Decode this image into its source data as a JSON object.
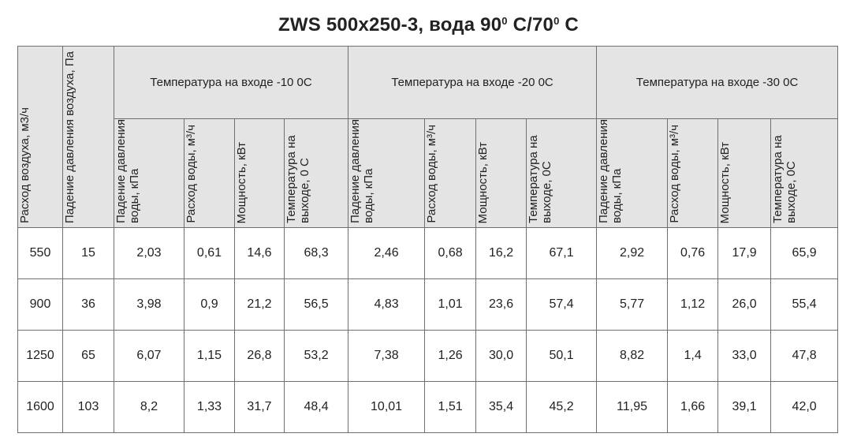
{
  "title": {
    "model": "ZWS 500x250-3, вода 90",
    "deg1": "0",
    "mid": " C/70",
    "deg2": "0",
    "end": " C"
  },
  "columns": {
    "airflow": "Расход воздуха, м3/ч",
    "air_pressure_drop": "Падение давления воздуха, Па",
    "water_pressure_drop": "Падение давления воды, кПа",
    "water_flow": "Расход воды, м³/ч",
    "power": "Мощность, кВт",
    "outlet_temp_first": "Температура на выходе, 0 С",
    "outlet_temp": "Температура на выходе, 0С"
  },
  "groups": [
    {
      "label": "Температура на входе -10 0С"
    },
    {
      "label": "Температура на входе -20 0С"
    },
    {
      "label": "Температура на входе -30 0С"
    }
  ],
  "rows": [
    {
      "airflow": "550",
      "pressure": "15",
      "g1": [
        "2,03",
        "0,61",
        "14,6",
        "68,3"
      ],
      "g2": [
        "2,46",
        "0,68",
        "16,2",
        "67,1"
      ],
      "g3": [
        "2,92",
        "0,76",
        "17,9",
        "65,9"
      ]
    },
    {
      "airflow": "900",
      "pressure": "36",
      "g1": [
        "3,98",
        "0,9",
        "21,2",
        "56,5"
      ],
      "g2": [
        "4,83",
        "1,01",
        "23,6",
        "57,4"
      ],
      "g3": [
        "5,77",
        "1,12",
        "26,0",
        "55,4"
      ]
    },
    {
      "airflow": "1250",
      "pressure": "65",
      "g1": [
        "6,07",
        "1,15",
        "26,8",
        "53,2"
      ],
      "g2": [
        "7,38",
        "1,26",
        "30,0",
        "50,1"
      ],
      "g3": [
        "8,82",
        "1,4",
        "33,0",
        "47,8"
      ]
    },
    {
      "airflow": "1600",
      "pressure": "103",
      "g1": [
        "8,2",
        "1,33",
        "31,7",
        "48,4"
      ],
      "g2": [
        "10,01",
        "1,51",
        "35,4",
        "45,2"
      ],
      "g3": [
        "11,95",
        "1,66",
        "39,1",
        "42,0"
      ]
    }
  ]
}
